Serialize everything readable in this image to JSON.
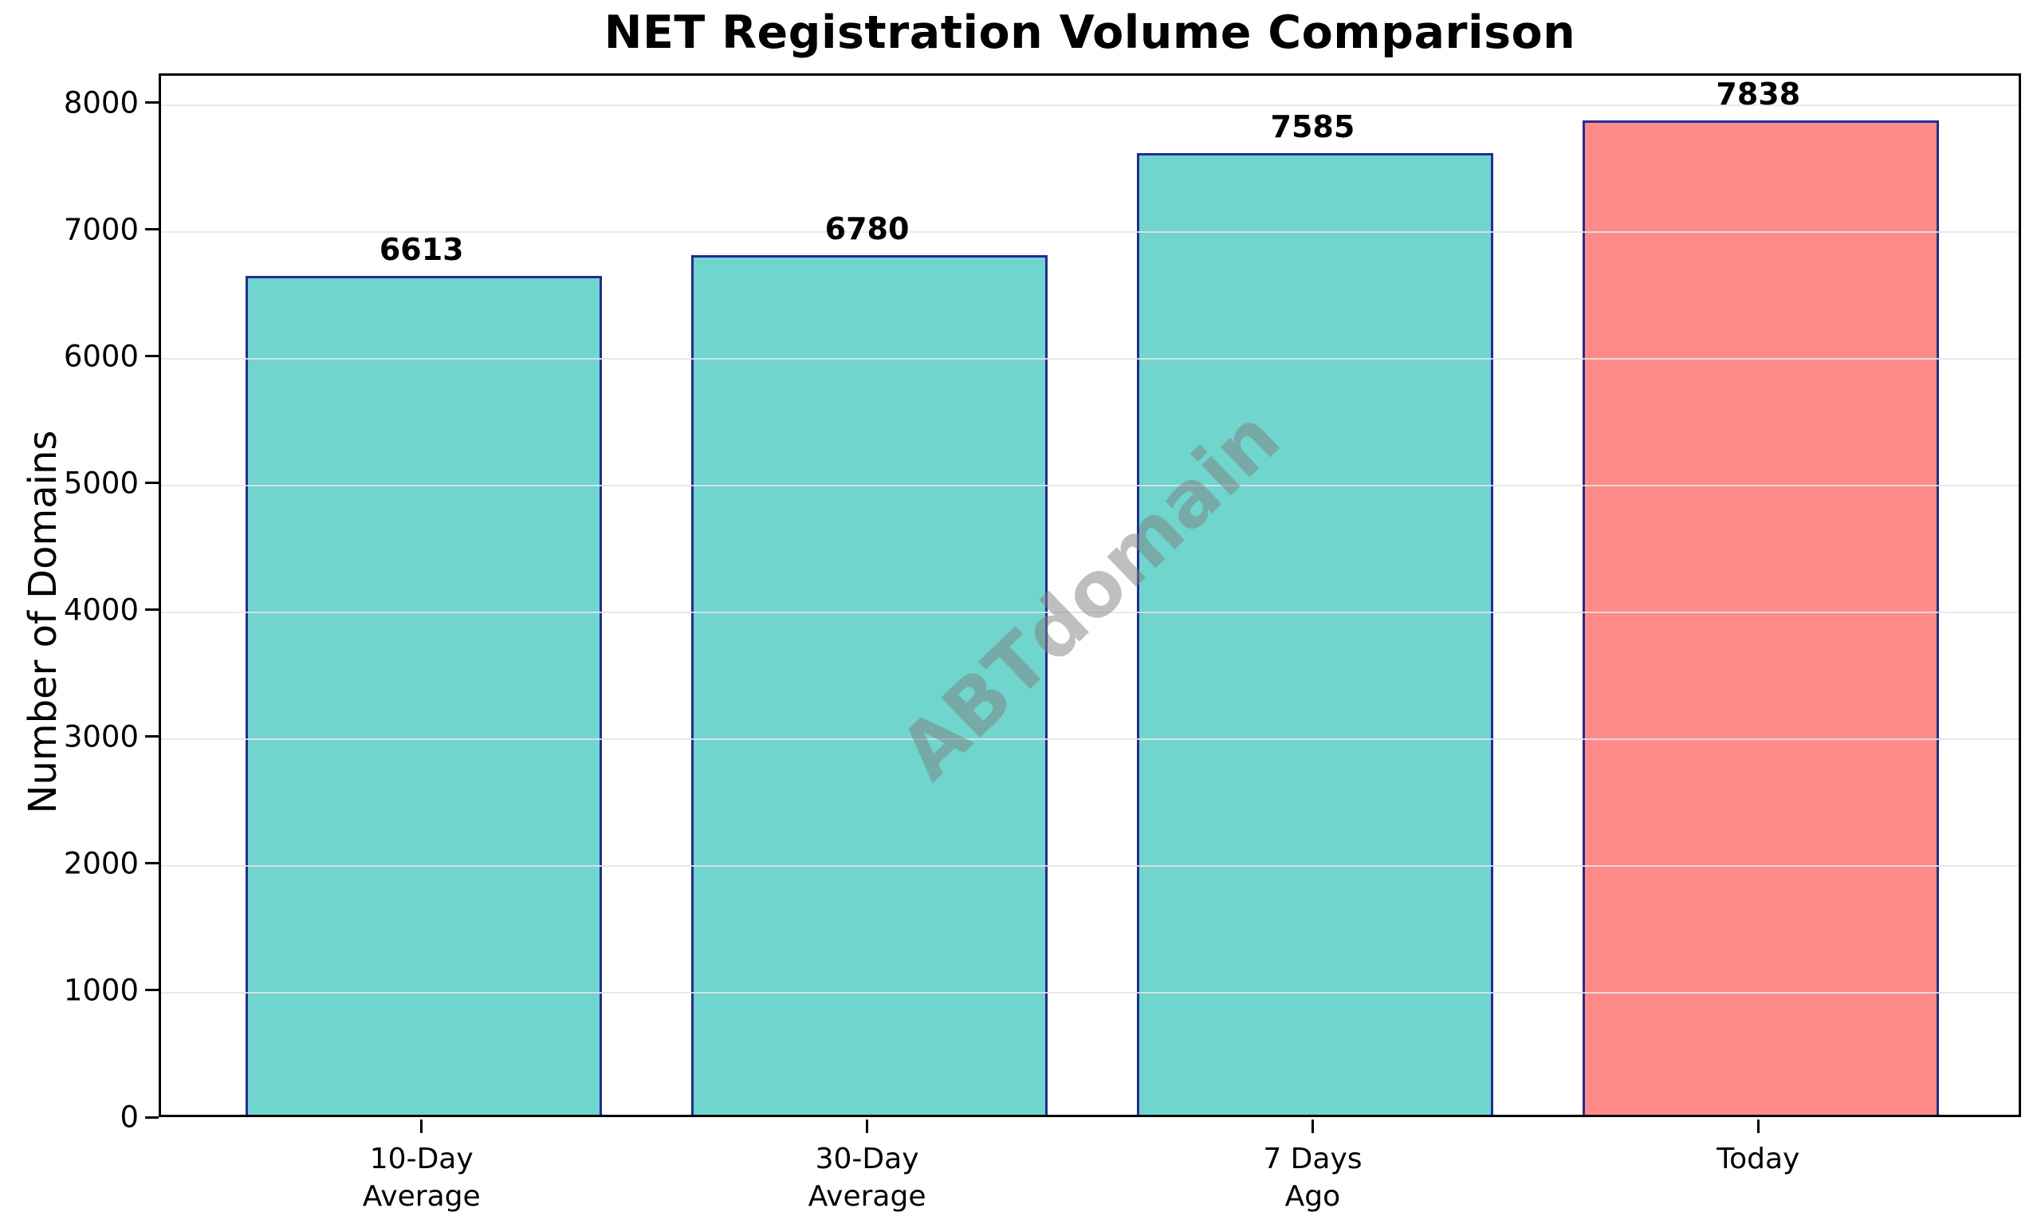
{
  "chart_data": {
    "type": "bar",
    "title": "NET Registration Volume Comparison",
    "ylabel": "Number of Domains",
    "xlabel": "",
    "categories": [
      "10-Day\nAverage",
      "30-Day\nAverage",
      "7 Days\nAgo",
      "Today"
    ],
    "values": [
      6613,
      6780,
      7585,
      7838
    ],
    "value_labels": [
      "6613",
      "6780",
      "7585",
      "7838"
    ],
    "bar_colors": [
      "#6fd5cd",
      "#6fd5cd",
      "#6fd5cd",
      "#ff8b88"
    ],
    "bar_edge_color": "#222b99",
    "yticks": [
      0,
      1000,
      2000,
      3000,
      4000,
      5000,
      6000,
      7000,
      8000
    ],
    "ytick_labels": [
      "0",
      "1000",
      "2000",
      "3000",
      "4000",
      "5000",
      "6000",
      "7000",
      "8000"
    ],
    "ylim": [
      0,
      8230
    ],
    "xlim": [
      -0.59,
      3.59
    ],
    "bar_width_units": 0.8,
    "grid": "horizontal",
    "gridline_color": "#e5e5e5",
    "legend": "none",
    "watermark": "ABTdomain",
    "watermark_angle_deg": -44
  }
}
